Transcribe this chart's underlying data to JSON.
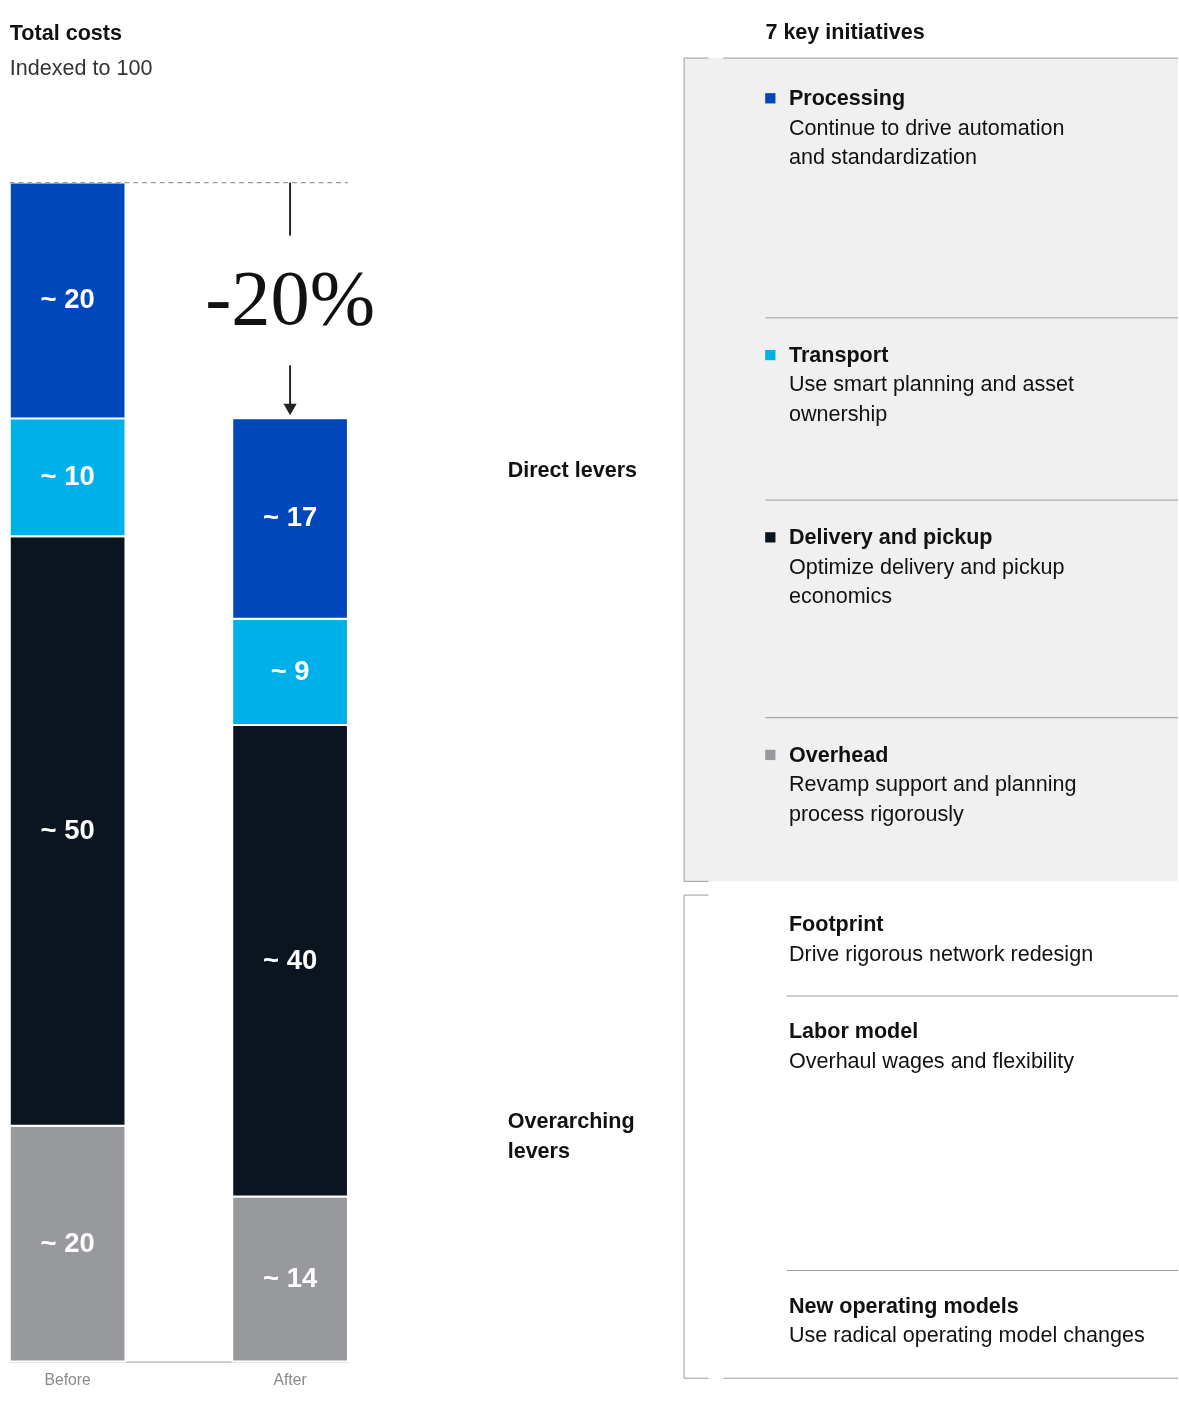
{
  "chart_data": {
    "type": "bar",
    "stacked": true,
    "title": "Total costs",
    "subtitle": "Indexed to 100",
    "categories": [
      "Before",
      "After"
    ],
    "ylim": [
      0,
      100
    ],
    "tick_labels": "x",
    "legend": "right",
    "grid": false,
    "series": [
      {
        "name": "Overhead",
        "color": "#97999c",
        "values": [
          20,
          14
        ],
        "value_labels": [
          "~ 20",
          "~ 14"
        ]
      },
      {
        "name": "Delivery and pickup",
        "color": "#0a1520",
        "values": [
          50,
          40
        ],
        "value_labels": [
          "~ 50",
          "~ 40"
        ]
      },
      {
        "name": "Transport",
        "color": "#00b0e8",
        "values": [
          10,
          9
        ],
        "value_labels": [
          "~ 10",
          "~ 9"
        ]
      },
      {
        "name": "Processing",
        "color": "#0047bb",
        "values": [
          20,
          17
        ],
        "value_labels": [
          "~ 20",
          "~ 17"
        ]
      }
    ],
    "ref_lines": [
      {
        "axis": "y",
        "value": 100,
        "color": "#999999",
        "line_style": "dashed"
      }
    ],
    "annotations": [
      "-20%",
      "Direct levers",
      "Overarching levers",
      "7 key initiatives",
      "Revamp support and planning process rigorously",
      "Optimize delivery and pickup economics",
      "Use smart planning and asset ownership",
      "Continue to drive automation and standardization",
      "Footprint",
      "Drive rigorous network redesign",
      "Labor model",
      "Overhaul wages and flexibility",
      "New operating models",
      "Use radical operating model changes"
    ]
  }
}
